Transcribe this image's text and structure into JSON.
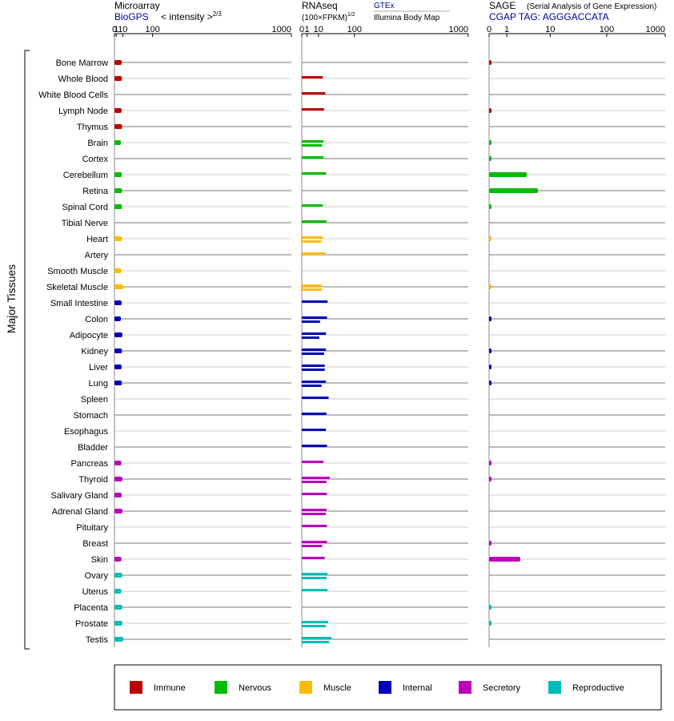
{
  "colors": {
    "Immune": "#bb0000",
    "Nervous": "#00bb00",
    "Muscle": "#ffbb00",
    "Internal": "#0000bb",
    "Secretory": "#bb00bb",
    "Reproductive": "#00bbbb"
  },
  "y_group_label": "Major Tissues",
  "chart_data": [
    {
      "type": "bar",
      "title": "Microarray",
      "subtitle": "BioGPS",
      "subtitle_note": "< intensity >",
      "subtitle_power": "2/3",
      "x_scale": "power-2/3",
      "tick_labels": [
        "0",
        "1",
        "10",
        "100",
        "1000"
      ],
      "xlim": [
        0,
        1000
      ],
      "categories": [
        "Bone Marrow",
        "Whole Blood",
        "White Blood Cells",
        "Lymph Node",
        "Thymus",
        "Brain",
        "Cortex",
        "Cerebellum",
        "Retina",
        "Spinal Cord",
        "Tibial Nerve",
        "Heart",
        "Artery",
        "Smooth Muscle",
        "Skeletal Muscle",
        "Small Intestine",
        "Colon",
        "Adipocyte",
        "Kidney",
        "Liver",
        "Lung",
        "Spleen",
        "Stomach",
        "Esophagus",
        "Bladder",
        "Pancreas",
        "Thyroid",
        "Salivary Gland",
        "Adrenal Gland",
        "Pituitary",
        "Breast",
        "Skin",
        "Ovary",
        "Uterus",
        "Placenta",
        "Prostate",
        "Testis"
      ],
      "groups": [
        "Immune",
        "Immune",
        "Immune",
        "Immune",
        "Immune",
        "Nervous",
        "Nervous",
        "Nervous",
        "Nervous",
        "Nervous",
        "Nervous",
        "Muscle",
        "Muscle",
        "Muscle",
        "Muscle",
        "Internal",
        "Internal",
        "Internal",
        "Internal",
        "Internal",
        "Internal",
        "Internal",
        "Internal",
        "Internal",
        "Internal",
        "Secretory",
        "Secretory",
        "Secretory",
        "Secretory",
        "Secretory",
        "Secretory",
        "Secretory",
        "Reproductive",
        "Reproductive",
        "Reproductive",
        "Reproductive",
        "Reproductive"
      ],
      "values": [
        [
          8.4
        ],
        [
          8.6
        ],
        [],
        [
          8.1
        ],
        [
          9.0
        ],
        [
          6.9
        ],
        [],
        [
          8.4
        ],
        [
          8.8
        ],
        [
          8.6
        ],
        [],
        [
          8.8
        ],
        [],
        [
          7.6
        ],
        [
          11.0
        ],
        [
          8.1
        ],
        [
          6.9
        ],
        [
          9.4
        ],
        [
          8.6
        ],
        [
          8.1
        ],
        [
          8.4
        ],
        [],
        [],
        [],
        [],
        [
          7.6
        ],
        [
          9.4
        ],
        [
          8.1
        ],
        [
          9.4
        ],
        [],
        [],
        [
          7.6
        ],
        [
          9.0
        ],
        [
          7.6
        ],
        [
          9.2
        ],
        [
          9.4
        ],
        [
          11.0
        ]
      ]
    },
    {
      "type": "bar",
      "title": "RNAseq",
      "subtitle_note": "(100×FPKM)",
      "subtitle_power": "1/2",
      "legend": [
        "GTEx",
        "Illumina Body Map"
      ],
      "x_scale": "sqrt",
      "tick_labels": [
        "0",
        "1",
        "10",
        "100",
        "1000"
      ],
      "xlim": [
        0,
        1000
      ],
      "categories": [
        "Bone Marrow",
        "Whole Blood",
        "White Blood Cells",
        "Lymph Node",
        "Thymus",
        "Brain",
        "Cortex",
        "Cerebellum",
        "Retina",
        "Spinal Cord",
        "Tibial Nerve",
        "Heart",
        "Artery",
        "Smooth Muscle",
        "Skeletal Muscle",
        "Small Intestine",
        "Colon",
        "Adipocyte",
        "Kidney",
        "Liver",
        "Lung",
        "Spleen",
        "Stomach",
        "Esophagus",
        "Bladder",
        "Pancreas",
        "Thyroid",
        "Salivary Gland",
        "Adrenal Gland",
        "Pituitary",
        "Breast",
        "Skin",
        "Ovary",
        "Uterus",
        "Placenta",
        "Prostate",
        "Testis"
      ],
      "groups": [
        "Immune",
        "Immune",
        "Immune",
        "Immune",
        "Immune",
        "Nervous",
        "Nervous",
        "Nervous",
        "Nervous",
        "Nervous",
        "Nervous",
        "Muscle",
        "Muscle",
        "Muscle",
        "Muscle",
        "Internal",
        "Internal",
        "Internal",
        "Internal",
        "Internal",
        "Internal",
        "Internal",
        "Internal",
        "Internal",
        "Internal",
        "Secretory",
        "Secretory",
        "Secretory",
        "Secretory",
        "Secretory",
        "Secretory",
        "Secretory",
        "Reproductive",
        "Reproductive",
        "Reproductive",
        "Reproductive",
        "Reproductive"
      ],
      "values": [
        [],
        [
          16
        ],
        [
          20
        ],
        [
          18
        ],
        [],
        [
          17,
          15
        ],
        [
          17
        ],
        [
          21
        ],
        [],
        [
          16
        ],
        [
          22
        ],
        [
          16,
          14
        ],
        [
          20
        ],
        [],
        [
          14,
          15
        ],
        [
          24
        ],
        [
          23,
          12
        ],
        [
          21,
          11
        ],
        [
          21,
          18
        ],
        [
          19,
          19
        ],
        [
          21,
          14
        ],
        [
          26
        ],
        [
          22
        ],
        [
          21
        ],
        [
          23
        ],
        [
          17
        ],
        [
          28,
          22
        ],
        [
          23
        ],
        [
          22,
          21
        ],
        [
          23
        ],
        [
          23,
          15
        ],
        [
          19
        ],
        [
          24,
          22
        ],
        [
          24
        ],
        [],
        [
          25,
          21
        ],
        [
          32,
          27
        ]
      ]
    },
    {
      "type": "bar",
      "title": "SAGE",
      "title_note": "(Serial Analysis of Gene Expression)",
      "subtitle": "CGAP TAG: AGGGACCATA",
      "x_scale": "log1p",
      "tick_labels": [
        "0",
        "1",
        "10",
        "100",
        "1000"
      ],
      "xlim": [
        0,
        1000
      ],
      "categories": [
        "Bone Marrow",
        "Whole Blood",
        "White Blood Cells",
        "Lymph Node",
        "Thymus",
        "Brain",
        "Cortex",
        "Cerebellum",
        "Retina",
        "Spinal Cord",
        "Tibial Nerve",
        "Heart",
        "Artery",
        "Smooth Muscle",
        "Skeletal Muscle",
        "Small Intestine",
        "Colon",
        "Adipocyte",
        "Kidney",
        "Liver",
        "Lung",
        "Spleen",
        "Stomach",
        "Esophagus",
        "Bladder",
        "Pancreas",
        "Thyroid",
        "Salivary Gland",
        "Adrenal Gland",
        "Pituitary",
        "Breast",
        "Skin",
        "Ovary",
        "Uterus",
        "Placenta",
        "Prostate",
        "Testis"
      ],
      "groups": [
        "Immune",
        "Immune",
        "Immune",
        "Immune",
        "Immune",
        "Nervous",
        "Nervous",
        "Nervous",
        "Nervous",
        "Nervous",
        "Nervous",
        "Muscle",
        "Muscle",
        "Muscle",
        "Muscle",
        "Internal",
        "Internal",
        "Internal",
        "Internal",
        "Internal",
        "Internal",
        "Internal",
        "Internal",
        "Internal",
        "Internal",
        "Secretory",
        "Secretory",
        "Secretory",
        "Secretory",
        "Secretory",
        "Secretory",
        "Secretory",
        "Reproductive",
        "Reproductive",
        "Reproductive",
        "Reproductive",
        "Reproductive"
      ],
      "values": [
        [
          0.1
        ],
        [],
        [],
        [
          0.1
        ],
        [],
        [
          0.1
        ],
        [
          0.1
        ],
        [
          3.4
        ],
        [
          5.8
        ],
        [
          0.1
        ],
        [],
        [
          0.1
        ],
        [],
        [],
        [
          0.1
        ],
        [],
        [
          0.1
        ],
        [],
        [
          0.1
        ],
        [
          0.1
        ],
        [
          0.1
        ],
        [],
        [],
        [],
        [],
        [
          0.1
        ],
        [
          0.1
        ],
        [],
        [],
        [],
        [
          0.1
        ],
        [
          2.4
        ],
        [],
        [],
        [
          0.1
        ],
        [
          0.1
        ],
        []
      ]
    }
  ]
}
